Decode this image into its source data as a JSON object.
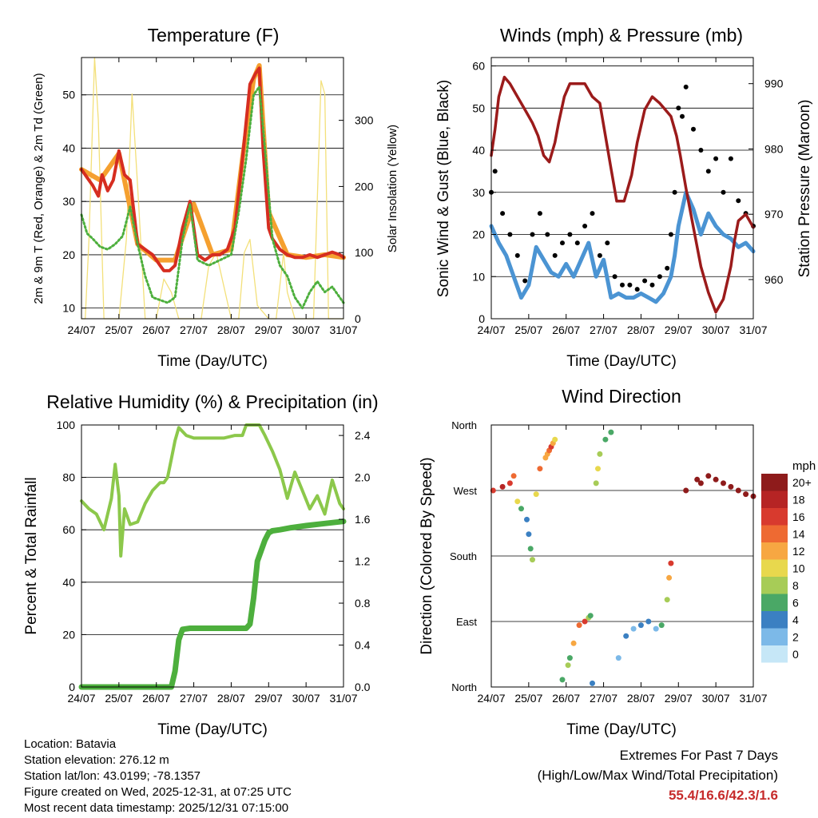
{
  "days": [
    "24/07",
    "25/07",
    "26/07",
    "27/07",
    "28/07",
    "29/07",
    "30/07",
    "31/07"
  ],
  "temperature": {
    "title": "Temperature (F)",
    "xlabel": "Time (Day/UTC)",
    "ylabel_left": "2m & 9m T (Red, Orange) & 2m Td (Green)",
    "ylabel_right": "Solar Insolation (Yellow)",
    "left_ticks": [
      "10",
      "20",
      "30",
      "40",
      "50"
    ],
    "right_ticks": [
      "0",
      "100",
      "200",
      "300"
    ]
  },
  "winds": {
    "title": "Winds (mph) & Pressure (mb)",
    "xlabel": "Time (Day/UTC)",
    "ylabel_left": "Sonic Wind & Gust (Blue, Black)",
    "ylabel_right": "Station Pressure (Maroon)",
    "left_ticks": [
      "0",
      "10",
      "20",
      "30",
      "40",
      "50",
      "60"
    ],
    "right_ticks": [
      "960",
      "970",
      "980",
      "990"
    ]
  },
  "humidity": {
    "title": "Relative Humidity (%) & Precipitation (in)",
    "xlabel": "Time (Day/UTC)",
    "ylabel_left": "Percent & Total Rainfall",
    "left_ticks": [
      "0",
      "20",
      "40",
      "60",
      "80",
      "100"
    ],
    "right_ticks": [
      "0.0",
      "0.4",
      "0.8",
      "1.2",
      "1.6",
      "2.0",
      "2.4"
    ]
  },
  "direction": {
    "title": "Wind Direction",
    "xlabel": "Time (Day/UTC)",
    "ylabel_left": "Direction (Colored By Speed)",
    "dir_ticks": [
      "North",
      "East",
      "South",
      "West",
      "North"
    ],
    "legend_title": "mph",
    "legend_labels": [
      "20+",
      "18",
      "16",
      "14",
      "12",
      "10",
      "8",
      "6",
      "4",
      "2",
      "0"
    ],
    "legend_colors": [
      "#8e1b1b",
      "#b62424",
      "#d83a2e",
      "#ee6a32",
      "#f7a742",
      "#e8d84d",
      "#a7cc57",
      "#4aa866",
      "#3b80c2",
      "#7cb9e8",
      "#c6e7f7"
    ]
  },
  "colors": {
    "temp2m": "#d62d20",
    "temp9m": "#f5a02f",
    "dewpoint": "#4daf3d",
    "solar": "#f3e07a",
    "wind": "#4b94d3",
    "gust": "#000000",
    "pressure": "#9b1b1b",
    "rh": "#8cc84b",
    "precip": "#4daf3d"
  },
  "chart_data": [
    {
      "type": "line",
      "title": "Temperature (F)",
      "xlabel": "Time (Day/UTC)",
      "ylabel": "2m & 9m T (Red, Orange) & 2m Td (Green)",
      "y2label": "Solar Insolation (Yellow)",
      "xlim": [
        0,
        7
      ],
      "ylim": [
        8,
        57
      ],
      "y2lim": [
        0,
        395
      ],
      "series": [
        {
          "name": "2m T",
          "color": "#d62d20",
          "x": [
            0,
            0.15,
            0.3,
            0.45,
            0.55,
            0.7,
            0.85,
            1.0,
            1.05,
            1.15,
            1.3,
            1.5,
            1.7,
            1.9,
            2.1,
            2.2,
            2.35,
            2.5,
            2.7,
            2.9,
            3.1,
            3.3,
            3.5,
            3.7,
            3.9,
            4.1,
            4.3,
            4.5,
            4.65,
            4.75,
            4.85,
            5.0,
            5.1,
            5.3,
            5.5,
            5.7,
            5.9,
            6.1,
            6.3,
            6.5,
            6.7,
            6.9,
            7.0
          ],
          "y": [
            36,
            34.5,
            33,
            31,
            35,
            32,
            34,
            39.5,
            38,
            35,
            34,
            22,
            21,
            20,
            18,
            17,
            17,
            18,
            25,
            30,
            20,
            19,
            20,
            20,
            21,
            25,
            38,
            52,
            54,
            55,
            40,
            25,
            23,
            21,
            20,
            19.5,
            19.5,
            20,
            19.5,
            20,
            20.5,
            20,
            19.5
          ]
        },
        {
          "name": "9m T",
          "color": "#f5a02f",
          "x": [
            0,
            0.5,
            1.0,
            1.5,
            2.0,
            2.5,
            3.0,
            3.5,
            4.0,
            4.3,
            4.6,
            4.75,
            5.0,
            5.5,
            6.0,
            6.5,
            7.0
          ],
          "y": [
            36,
            34,
            39,
            22,
            19,
            19,
            29.5,
            20,
            21,
            38,
            53,
            55.5,
            28,
            20,
            19.5,
            20,
            19.5
          ]
        },
        {
          "name": "2m Td",
          "color": "#4daf3d",
          "x": [
            0,
            0.15,
            0.3,
            0.5,
            0.7,
            0.9,
            1.1,
            1.3,
            1.5,
            1.7,
            1.9,
            2.1,
            2.3,
            2.5,
            2.7,
            2.9,
            3.1,
            3.4,
            3.7,
            4.0,
            4.2,
            4.4,
            4.6,
            4.75,
            4.9,
            5.1,
            5.3,
            5.5,
            5.7,
            5.9,
            6.1,
            6.3,
            6.5,
            6.7,
            6.9,
            7.0
          ],
          "y": [
            27.5,
            24,
            23,
            21.5,
            21,
            22,
            23.5,
            29,
            22,
            16,
            12,
            11.5,
            11,
            12,
            23,
            29.5,
            19,
            18,
            19,
            20,
            28,
            38,
            50,
            51.5,
            40,
            23,
            18,
            16,
            12,
            10,
            13,
            15,
            13,
            14,
            12,
            11
          ]
        },
        {
          "name": "Solar Insolation",
          "color": "#f3e07a",
          "axis": "y2",
          "x": [
            0,
            0.1,
            0.2,
            0.35,
            0.45,
            0.6,
            1.0,
            1.2,
            1.35,
            1.5,
            1.7,
            2.0,
            2.2,
            2.4,
            2.6,
            3.0,
            3.2,
            3.4,
            3.6,
            4.0,
            4.2,
            4.35,
            4.5,
            4.7,
            5.0,
            5.2,
            5.4,
            5.5,
            5.7,
            6.0,
            6.2,
            6.4,
            6.5,
            6.6,
            7.0
          ],
          "y": [
            0,
            0,
            120,
            395,
            300,
            0,
            0,
            120,
            340,
            200,
            0,
            0,
            60,
            40,
            0,
            0,
            0,
            80,
            100,
            0,
            0,
            100,
            120,
            20,
            0,
            0,
            100,
            40,
            0,
            0,
            0,
            360,
            340,
            0,
            0
          ]
        }
      ]
    },
    {
      "type": "line",
      "title": "Winds (mph) & Pressure (mb)",
      "xlabel": "Time (Day/UTC)",
      "ylabel": "Sonic Wind & Gust (Blue, Black)",
      "y2label": "Station Pressure (Maroon)",
      "xlim": [
        0,
        7
      ],
      "ylim": [
        0,
        62
      ],
      "y2lim": [
        954,
        994
      ],
      "series": [
        {
          "name": "Sonic Wind",
          "color": "#4b94d3",
          "x": [
            0,
            0.2,
            0.4,
            0.6,
            0.8,
            1.0,
            1.2,
            1.4,
            1.6,
            1.8,
            2.0,
            2.2,
            2.4,
            2.6,
            2.8,
            3.0,
            3.2,
            3.4,
            3.6,
            3.8,
            4.0,
            4.2,
            4.4,
            4.6,
            4.8,
            4.9,
            5.0,
            5.2,
            5.4,
            5.6,
            5.8,
            6.0,
            6.2,
            6.4,
            6.6,
            6.8,
            7.0
          ],
          "y": [
            22,
            18,
            15,
            10,
            5,
            8,
            17,
            14,
            11,
            10,
            13,
            10,
            14,
            18,
            10,
            14,
            5,
            6,
            5,
            5,
            6,
            5,
            4,
            6,
            10,
            15,
            22,
            30,
            26,
            20,
            25,
            22,
            20,
            19,
            17,
            18,
            16
          ]
        },
        {
          "name": "Gust",
          "color": "#000000",
          "x": [
            0,
            0.1,
            0.3,
            0.5,
            0.7,
            0.9,
            1.1,
            1.3,
            1.5,
            1.7,
            1.9,
            2.1,
            2.3,
            2.5,
            2.7,
            2.9,
            3.1,
            3.3,
            3.5,
            3.7,
            3.9,
            4.1,
            4.3,
            4.5,
            4.7,
            4.8,
            4.9,
            5.0,
            5.1,
            5.2,
            5.4,
            5.6,
            5.8,
            6.0,
            6.2,
            6.4,
            6.6,
            6.8,
            7.0
          ],
          "y": [
            30,
            35,
            25,
            20,
            15,
            9,
            20,
            25,
            20,
            15,
            18,
            20,
            18,
            22,
            25,
            15,
            18,
            10,
            8,
            8,
            7,
            9,
            8,
            10,
            12,
            20,
            30,
            50,
            48,
            55,
            45,
            40,
            35,
            38,
            30,
            38,
            28,
            25,
            22
          ]
        },
        {
          "name": "Station Pressure",
          "color": "#9b1b1b",
          "axis": "y2",
          "x": [
            0,
            0.1,
            0.2,
            0.35,
            0.5,
            0.7,
            0.9,
            1.0,
            1.1,
            1.25,
            1.4,
            1.55,
            1.7,
            1.8,
            1.95,
            2.1,
            2.3,
            2.5,
            2.7,
            2.9,
            3.05,
            3.2,
            3.35,
            3.55,
            3.75,
            3.9,
            4.1,
            4.3,
            4.5,
            4.65,
            4.8,
            4.95,
            5.05,
            5.2,
            5.4,
            5.6,
            5.8,
            6.0,
            6.2,
            6.4,
            6.5,
            6.6,
            6.8,
            6.9,
            7.0
          ],
          "y": [
            979,
            983,
            988,
            991,
            990,
            988,
            986,
            985,
            984,
            982,
            979,
            978,
            981,
            984,
            988,
            990,
            990,
            990,
            988,
            987,
            982,
            977,
            972,
            972,
            976,
            981,
            986,
            988,
            987,
            986,
            985,
            982,
            979,
            974,
            968,
            962,
            958,
            955,
            957,
            962,
            966,
            969,
            970,
            969,
            968
          ]
        }
      ]
    },
    {
      "type": "line",
      "title": "Relative Humidity (%) & Precipitation (in)",
      "xlabel": "Time (Day/UTC)",
      "ylabel": "Percent & Total Rainfall",
      "xlim": [
        0,
        7
      ],
      "ylim": [
        0,
        100
      ],
      "y2lim": [
        0,
        2.5
      ],
      "series": [
        {
          "name": "Relative Humidity",
          "color": "#8cc84b",
          "x": [
            0,
            0.2,
            0.4,
            0.6,
            0.8,
            0.9,
            1.0,
            1.05,
            1.15,
            1.3,
            1.5,
            1.7,
            1.9,
            2.1,
            2.2,
            2.3,
            2.4,
            2.5,
            2.6,
            2.8,
            3.0,
            3.2,
            3.5,
            3.8,
            4.1,
            4.3,
            4.4,
            4.6,
            4.75,
            4.9,
            5.1,
            5.3,
            5.5,
            5.7,
            5.9,
            6.1,
            6.3,
            6.5,
            6.7,
            6.9,
            7.0
          ],
          "y": [
            71,
            68,
            66,
            60,
            72,
            85,
            73,
            50,
            68,
            62,
            63,
            70,
            75,
            78,
            78,
            80,
            87,
            94,
            99,
            96,
            95,
            95,
            95,
            95,
            96,
            96,
            100,
            100,
            100,
            96,
            90,
            83,
            72,
            82,
            75,
            68,
            73,
            66,
            79,
            70,
            68
          ]
        },
        {
          "name": "Total Precipitation",
          "color": "#4daf3d",
          "axis": "y2",
          "x": [
            0,
            0.5,
            1.0,
            1.5,
            2.0,
            2.4,
            2.5,
            2.6,
            2.7,
            2.9,
            3.2,
            3.6,
            4.0,
            4.4,
            4.5,
            4.6,
            4.7,
            4.8,
            4.9,
            5.0,
            5.1,
            5.3,
            5.6,
            6.0,
            6.5,
            7.0
          ],
          "y": [
            0,
            0,
            0,
            0,
            0,
            0,
            0.15,
            0.45,
            0.55,
            0.56,
            0.56,
            0.56,
            0.56,
            0.56,
            0.6,
            0.85,
            1.2,
            1.3,
            1.4,
            1.47,
            1.49,
            1.5,
            1.52,
            1.54,
            1.56,
            1.58
          ]
        }
      ]
    },
    {
      "type": "scatter",
      "title": "Wind Direction",
      "xlabel": "Time (Day/UTC)",
      "ylabel": "Direction (Colored By Speed)",
      "xlim": [
        0,
        7
      ],
      "ylim": [
        0,
        360
      ],
      "colorbar": {
        "title": "mph",
        "labels": [
          "20+",
          "18",
          "16",
          "14",
          "12",
          "10",
          "8",
          "6",
          "4",
          "2",
          "0"
        ]
      },
      "series": [
        {
          "name": "Wind Direction",
          "x_range": [
            0,
            7
          ],
          "x": [
            0.05,
            0.3,
            0.5,
            0.6,
            0.7,
            0.8,
            0.95,
            1.0,
            1.05,
            1.1,
            1.2,
            1.3,
            1.45,
            1.5,
            1.55,
            1.6,
            1.65,
            1.7,
            1.9,
            2.05,
            2.1,
            2.2,
            2.35,
            2.5,
            2.6,
            2.65,
            2.7,
            2.8,
            2.85,
            2.9,
            3.05,
            3.2,
            3.4,
            3.6,
            3.8,
            4.0,
            4.2,
            4.4,
            4.55,
            4.7,
            4.75,
            4.8,
            5.2,
            5.5,
            5.6,
            5.8,
            6.0,
            6.2,
            6.4,
            6.6,
            6.8,
            7.0
          ],
          "y": [
            270,
            275,
            280,
            290,
            255,
            245,
            230,
            210,
            190,
            175,
            265,
            300,
            315,
            320,
            325,
            330,
            335,
            340,
            10,
            30,
            40,
            60,
            85,
            90,
            95,
            98,
            5,
            280,
            300,
            320,
            340,
            350,
            40,
            70,
            80,
            85,
            90,
            80,
            85,
            120,
            150,
            170,
            270,
            285,
            280,
            290,
            285,
            280,
            275,
            270,
            265,
            262
          ],
          "speed": [
            16,
            18,
            17,
            14,
            10,
            6,
            5,
            4,
            6,
            8,
            10,
            14,
            13,
            12,
            15,
            16,
            12,
            10,
            6,
            8,
            7,
            12,
            14,
            16,
            9,
            6,
            4,
            8,
            10,
            9,
            7,
            6,
            2,
            4,
            3,
            4,
            5,
            3,
            6,
            8,
            12,
            16,
            20,
            20,
            20,
            20,
            20,
            20,
            20,
            20,
            20,
            20
          ]
        }
      ]
    }
  ],
  "info": {
    "location": "Location: Batavia",
    "elevation": "Station elevation: 276.12 m",
    "latlon": "Station lat/lon: 43.0199; -78.1357",
    "created": "Figure created on Wed, 2025-12-31, at 07:25 UTC",
    "timestamp": "Most recent data timestamp: 2025/12/31 07:15:00"
  },
  "extremes": {
    "heading": "Extremes For Past 7 Days",
    "subheading": "(High/Low/Max Wind/Total Precipitation)",
    "values": "55.4/16.6/42.3/1.6"
  }
}
